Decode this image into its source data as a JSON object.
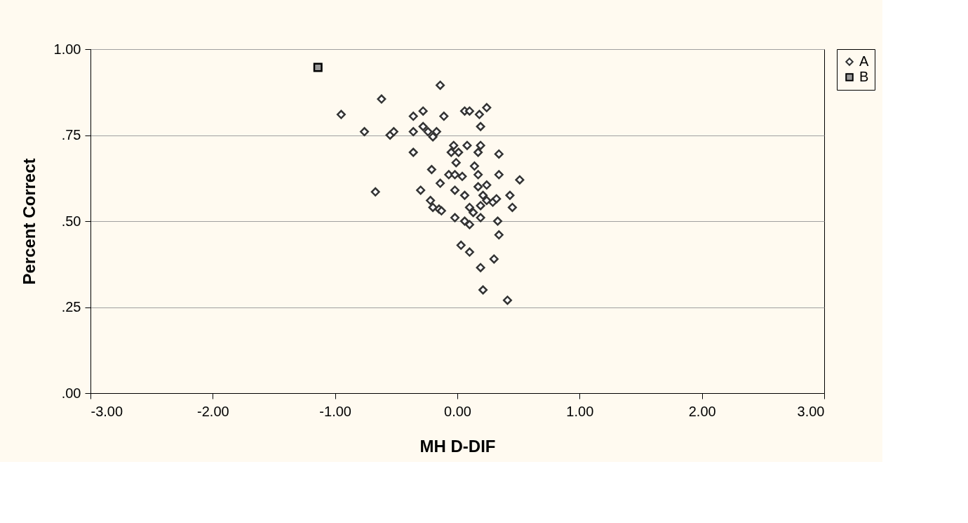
{
  "chart_data": {
    "type": "scatter",
    "xlabel": "MH D-DIF",
    "ylabel": "Percent Correct",
    "xlim": [
      -3,
      3
    ],
    "xticks": [
      {
        "value": -3,
        "label": "-3.00"
      },
      {
        "value": -2,
        "label": "-2.00"
      },
      {
        "value": -1,
        "label": "-1.00"
      },
      {
        "value": 0,
        "label": "0.00"
      },
      {
        "value": 1,
        "label": "1.00"
      },
      {
        "value": 2,
        "label": "2.00"
      },
      {
        "value": 3,
        "label": "3.00"
      }
    ],
    "ylim": [
      0,
      1
    ],
    "yticks": [
      {
        "value": 0,
        "label": ".00"
      },
      {
        "value": 0.25,
        "label": ".25"
      },
      {
        "value": 0.5,
        "label": ".50"
      },
      {
        "value": 0.75,
        "label": ".75"
      },
      {
        "value": 1,
        "label": "1.00"
      }
    ],
    "grid": "y",
    "legend": "right",
    "series": [
      {
        "name": "A",
        "color": "#333333",
        "marker": "diamond",
        "x": [
          -0.95,
          -0.62,
          -0.76,
          -0.14,
          -0.36,
          -0.28,
          -0.11,
          0.06,
          0.1,
          0.24,
          0.18,
          -0.55,
          -0.52,
          -0.36,
          -0.28,
          -0.24,
          -0.2,
          -0.17,
          0.19,
          -0.36,
          -0.67,
          -0.03,
          0.08,
          0.19,
          -0.05,
          0.01,
          0.17,
          0.34,
          -0.21,
          -0.07,
          -0.02,
          -0.01,
          0.04,
          0.14,
          0.17,
          0.34,
          0.51,
          -0.3,
          -0.14,
          -0.02,
          0.06,
          0.17,
          0.24,
          0.21,
          0.43,
          -0.22,
          -0.2,
          -0.15,
          -0.13,
          0.1,
          0.13,
          0.19,
          0.24,
          0.29,
          0.32,
          0.45,
          -0.02,
          0.06,
          0.1,
          0.19,
          0.33,
          0.34,
          0.03,
          0.1,
          0.3,
          0.19,
          0.21,
          0.41
        ],
        "values": [
          0.81,
          0.855,
          0.76,
          0.895,
          0.805,
          0.82,
          0.805,
          0.82,
          0.82,
          0.83,
          0.81,
          0.75,
          0.76,
          0.76,
          0.775,
          0.76,
          0.745,
          0.76,
          0.775,
          0.7,
          0.585,
          0.72,
          0.72,
          0.72,
          0.7,
          0.7,
          0.7,
          0.695,
          0.65,
          0.635,
          0.635,
          0.67,
          0.63,
          0.66,
          0.635,
          0.635,
          0.62,
          0.59,
          0.61,
          0.59,
          0.575,
          0.6,
          0.605,
          0.575,
          0.575,
          0.56,
          0.54,
          0.535,
          0.53,
          0.54,
          0.525,
          0.545,
          0.56,
          0.555,
          0.565,
          0.54,
          0.51,
          0.5,
          0.49,
          0.51,
          0.5,
          0.46,
          0.43,
          0.41,
          0.39,
          0.365,
          0.3,
          0.27
        ]
      },
      {
        "name": "B",
        "color": "#999999",
        "marker": "square",
        "x": [
          -1.14
        ],
        "values": [
          0.947
        ]
      }
    ]
  }
}
